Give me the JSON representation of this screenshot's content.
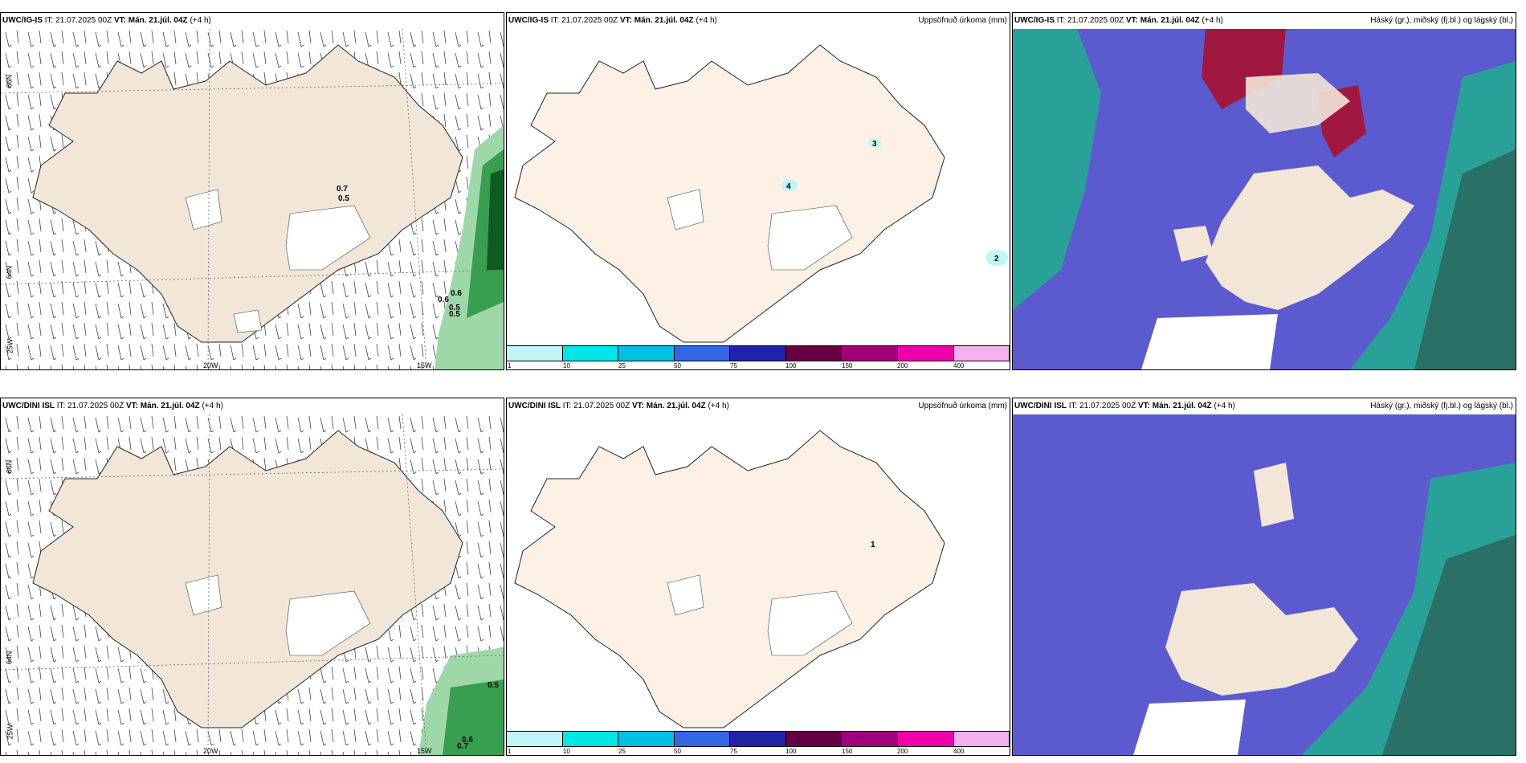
{
  "rows": [
    {
      "model": "UWC/IG-IS",
      "it": "IT: 21.07.2025 00Z",
      "vt": "VT: Mán. 21.júl. 04Z",
      "lead": "(+4 h)",
      "wind_values": [
        "0.7",
        "0.5",
        "0.6",
        "0.6",
        "0.5",
        "0.5"
      ],
      "precip_values": [
        "3",
        "4",
        "2"
      ]
    },
    {
      "model": "UWC/DINI ISL",
      "it": "IT: 21.07.2025 00Z",
      "vt": "VT: Mán. 21.júl. 04Z",
      "lead": "(+4 h)",
      "wind_values": [
        "0.5",
        "0.6",
        "0.7"
      ],
      "precip_values": [
        "1"
      ]
    }
  ],
  "precip_title": "Uppsöfnuð úrkoma (mm)",
  "cloud_title": "Háský (gr.), miðský (fj.bl.) og lágský (bl.)",
  "axis_labels": {
    "lat66": "66N",
    "lat64": "64N",
    "lon25": "25W",
    "lon20": "20W",
    "lon15": "15W"
  },
  "legend": {
    "colors": [
      "#bff5f5",
      "#00e5e5",
      "#00bfe5",
      "#3366e5",
      "#2222a8",
      "#660044",
      "#a0007a",
      "#ee00aa",
      "#f5b0f0"
    ],
    "ticks": [
      "1",
      "10",
      "25",
      "50",
      "75",
      "100",
      "150",
      "200",
      "400"
    ]
  },
  "colors": {
    "land": "#f2e6d8",
    "land_precip": "#fdf0e4",
    "cloud_low": "#5b5bcf",
    "cloud_high": "#1db38a",
    "cloud_mid": "#a01840",
    "precip_green": "#3a9e50"
  }
}
